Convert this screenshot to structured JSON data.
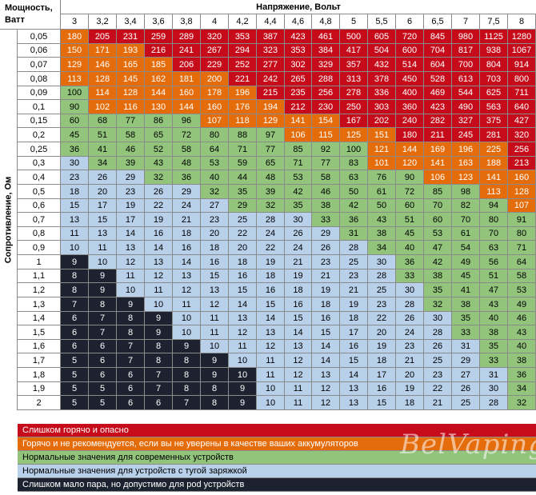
{
  "header": {
    "power_label": "Мощность, Ватт",
    "voltage_title": "Напряжение, Вольт",
    "resistance_title": "Сопротивление, Ом"
  },
  "voltages": [
    "3",
    "3,2",
    "3,4",
    "3,6",
    "3,8",
    "4",
    "4,2",
    "4,4",
    "4,6",
    "4,8",
    "5",
    "5,5",
    "6",
    "6,5",
    "7",
    "7,5",
    "8"
  ],
  "rows": [
    {
      "r": "0,05",
      "v": [
        180,
        205,
        231,
        259,
        289,
        320,
        353,
        387,
        423,
        461,
        500,
        605,
        720,
        845,
        980,
        1125,
        1280
      ],
      "z": [
        "o",
        "r",
        "r",
        "r",
        "r",
        "r",
        "r",
        "r",
        "r",
        "r",
        "r",
        "r",
        "r",
        "r",
        "r",
        "r",
        "r"
      ]
    },
    {
      "r": "0,06",
      "v": [
        150,
        171,
        193,
        216,
        241,
        267,
        294,
        323,
        353,
        384,
        417,
        504,
        600,
        704,
        817,
        938,
        1067
      ],
      "z": [
        "o",
        "o",
        "o",
        "r",
        "r",
        "r",
        "r",
        "r",
        "r",
        "r",
        "r",
        "r",
        "r",
        "r",
        "r",
        "r",
        "r"
      ]
    },
    {
      "r": "0,07",
      "v": [
        129,
        146,
        165,
        185,
        206,
        229,
        252,
        277,
        302,
        329,
        357,
        432,
        514,
        604,
        700,
        804,
        914
      ],
      "z": [
        "o",
        "o",
        "o",
        "o",
        "r",
        "r",
        "r",
        "r",
        "r",
        "r",
        "r",
        "r",
        "r",
        "r",
        "r",
        "r",
        "r"
      ]
    },
    {
      "r": "0,08",
      "v": [
        113,
        128,
        145,
        162,
        181,
        200,
        221,
        242,
        265,
        288,
        313,
        378,
        450,
        528,
        613,
        703,
        800
      ],
      "z": [
        "o",
        "o",
        "o",
        "o",
        "o",
        "o",
        "r",
        "r",
        "r",
        "r",
        "r",
        "r",
        "r",
        "r",
        "r",
        "r",
        "r"
      ]
    },
    {
      "r": "0,09",
      "v": [
        100,
        114,
        128,
        144,
        160,
        178,
        196,
        215,
        235,
        256,
        278,
        336,
        400,
        469,
        544,
        625,
        711
      ],
      "z": [
        "g",
        "o",
        "o",
        "o",
        "o",
        "o",
        "o",
        "r",
        "r",
        "r",
        "r",
        "r",
        "r",
        "r",
        "r",
        "r",
        "r"
      ]
    },
    {
      "r": "0,1",
      "v": [
        90,
        102,
        116,
        130,
        144,
        160,
        176,
        194,
        212,
        230,
        250,
        303,
        360,
        423,
        490,
        563,
        640
      ],
      "z": [
        "g",
        "o",
        "o",
        "o",
        "o",
        "o",
        "o",
        "o",
        "r",
        "r",
        "r",
        "r",
        "r",
        "r",
        "r",
        "r",
        "r"
      ]
    },
    {
      "r": "0,15",
      "v": [
        60,
        68,
        77,
        86,
        96,
        107,
        118,
        129,
        141,
        154,
        167,
        202,
        240,
        282,
        327,
        375,
        427
      ],
      "z": [
        "g",
        "g",
        "g",
        "g",
        "g",
        "o",
        "o",
        "o",
        "o",
        "o",
        "r",
        "r",
        "r",
        "r",
        "r",
        "r",
        "r"
      ]
    },
    {
      "r": "0,2",
      "v": [
        45,
        51,
        58,
        65,
        72,
        80,
        88,
        97,
        106,
        115,
        125,
        151,
        180,
        211,
        245,
        281,
        320
      ],
      "z": [
        "g",
        "g",
        "g",
        "g",
        "g",
        "g",
        "g",
        "g",
        "o",
        "o",
        "o",
        "o",
        "r",
        "r",
        "r",
        "r",
        "r"
      ]
    },
    {
      "r": "0,25",
      "v": [
        36,
        41,
        46,
        52,
        58,
        64,
        71,
        77,
        85,
        92,
        100,
        121,
        144,
        169,
        196,
        225,
        256
      ],
      "z": [
        "g",
        "g",
        "g",
        "g",
        "g",
        "g",
        "g",
        "g",
        "g",
        "g",
        "g",
        "o",
        "o",
        "o",
        "o",
        "o",
        "r"
      ]
    },
    {
      "r": "0,3",
      "v": [
        30,
        34,
        39,
        43,
        48,
        53,
        59,
        65,
        71,
        77,
        83,
        101,
        120,
        141,
        163,
        188,
        213
      ],
      "z": [
        "b",
        "g",
        "g",
        "g",
        "g",
        "g",
        "g",
        "g",
        "g",
        "g",
        "g",
        "o",
        "o",
        "o",
        "o",
        "o",
        "r"
      ]
    },
    {
      "r": "0,4",
      "v": [
        23,
        26,
        29,
        32,
        36,
        40,
        44,
        48,
        53,
        58,
        63,
        76,
        90,
        106,
        123,
        141,
        160
      ],
      "z": [
        "b",
        "b",
        "b",
        "g",
        "g",
        "g",
        "g",
        "g",
        "g",
        "g",
        "g",
        "g",
        "g",
        "o",
        "o",
        "o",
        "o"
      ]
    },
    {
      "r": "0,5",
      "v": [
        18,
        20,
        23,
        26,
        29,
        32,
        35,
        39,
        42,
        46,
        50,
        61,
        72,
        85,
        98,
        113,
        128
      ],
      "z": [
        "b",
        "b",
        "b",
        "b",
        "b",
        "g",
        "g",
        "g",
        "g",
        "g",
        "g",
        "g",
        "g",
        "g",
        "g",
        "o",
        "o"
      ]
    },
    {
      "r": "0,6",
      "v": [
        15,
        17,
        19,
        22,
        24,
        27,
        29,
        32,
        35,
        38,
        42,
        50,
        60,
        70,
        82,
        94,
        107
      ],
      "z": [
        "b",
        "b",
        "b",
        "b",
        "b",
        "b",
        "g",
        "g",
        "g",
        "g",
        "g",
        "g",
        "g",
        "g",
        "g",
        "g",
        "o"
      ]
    },
    {
      "r": "0,7",
      "v": [
        13,
        15,
        17,
        19,
        21,
        23,
        25,
        28,
        30,
        33,
        36,
        43,
        51,
        60,
        70,
        80,
        91
      ],
      "z": [
        "b",
        "b",
        "b",
        "b",
        "b",
        "b",
        "b",
        "b",
        "b",
        "g",
        "g",
        "g",
        "g",
        "g",
        "g",
        "g",
        "g"
      ]
    },
    {
      "r": "0,8",
      "v": [
        11,
        13,
        14,
        16,
        18,
        20,
        22,
        24,
        26,
        29,
        31,
        38,
        45,
        53,
        61,
        70,
        80
      ],
      "z": [
        "b",
        "b",
        "b",
        "b",
        "b",
        "b",
        "b",
        "b",
        "b",
        "b",
        "g",
        "g",
        "g",
        "g",
        "g",
        "g",
        "g"
      ]
    },
    {
      "r": "0,9",
      "v": [
        10,
        11,
        13,
        14,
        16,
        18,
        20,
        22,
        24,
        26,
        28,
        34,
        40,
        47,
        54,
        63,
        71
      ],
      "z": [
        "b",
        "b",
        "b",
        "b",
        "b",
        "b",
        "b",
        "b",
        "b",
        "b",
        "b",
        "g",
        "g",
        "g",
        "g",
        "g",
        "g"
      ]
    },
    {
      "r": "1",
      "v": [
        9,
        10,
        12,
        13,
        14,
        16,
        18,
        19,
        21,
        23,
        25,
        30,
        36,
        42,
        49,
        56,
        64
      ],
      "z": [
        "d",
        "b",
        "b",
        "b",
        "b",
        "b",
        "b",
        "b",
        "b",
        "b",
        "b",
        "b",
        "g",
        "g",
        "g",
        "g",
        "g"
      ]
    },
    {
      "r": "1,1",
      "v": [
        8,
        9,
        11,
        12,
        13,
        15,
        16,
        18,
        19,
        21,
        23,
        28,
        33,
        38,
        45,
        51,
        58
      ],
      "z": [
        "d",
        "d",
        "b",
        "b",
        "b",
        "b",
        "b",
        "b",
        "b",
        "b",
        "b",
        "b",
        "g",
        "g",
        "g",
        "g",
        "g"
      ]
    },
    {
      "r": "1,2",
      "v": [
        8,
        9,
        10,
        11,
        12,
        13,
        15,
        16,
        18,
        19,
        21,
        25,
        30,
        35,
        41,
        47,
        53
      ],
      "z": [
        "d",
        "d",
        "b",
        "b",
        "b",
        "b",
        "b",
        "b",
        "b",
        "b",
        "b",
        "b",
        "b",
        "g",
        "g",
        "g",
        "g"
      ]
    },
    {
      "r": "1,3",
      "v": [
        7,
        8,
        9,
        10,
        11,
        12,
        14,
        15,
        16,
        18,
        19,
        23,
        28,
        32,
        38,
        43,
        49
      ],
      "z": [
        "d",
        "d",
        "d",
        "b",
        "b",
        "b",
        "b",
        "b",
        "b",
        "b",
        "b",
        "b",
        "b",
        "g",
        "g",
        "g",
        "g"
      ]
    },
    {
      "r": "1,4",
      "v": [
        6,
        7,
        8,
        9,
        10,
        11,
        13,
        14,
        15,
        16,
        18,
        22,
        26,
        30,
        35,
        40,
        46
      ],
      "z": [
        "d",
        "d",
        "d",
        "d",
        "b",
        "b",
        "b",
        "b",
        "b",
        "b",
        "b",
        "b",
        "b",
        "b",
        "g",
        "g",
        "g"
      ]
    },
    {
      "r": "1,5",
      "v": [
        6,
        7,
        8,
        9,
        10,
        11,
        12,
        13,
        14,
        15,
        17,
        20,
        24,
        28,
        33,
        38,
        43
      ],
      "z": [
        "d",
        "d",
        "d",
        "d",
        "b",
        "b",
        "b",
        "b",
        "b",
        "b",
        "b",
        "b",
        "b",
        "b",
        "g",
        "g",
        "g"
      ]
    },
    {
      "r": "1,6",
      "v": [
        6,
        6,
        7,
        8,
        9,
        10,
        11,
        12,
        13,
        14,
        16,
        19,
        23,
        26,
        31,
        35,
        40
      ],
      "z": [
        "d",
        "d",
        "d",
        "d",
        "d",
        "b",
        "b",
        "b",
        "b",
        "b",
        "b",
        "b",
        "b",
        "b",
        "b",
        "g",
        "g"
      ]
    },
    {
      "r": "1,7",
      "v": [
        5,
        6,
        7,
        8,
        8,
        9,
        10,
        11,
        12,
        14,
        15,
        18,
        21,
        25,
        29,
        33,
        38
      ],
      "z": [
        "d",
        "d",
        "d",
        "d",
        "d",
        "d",
        "b",
        "b",
        "b",
        "b",
        "b",
        "b",
        "b",
        "b",
        "b",
        "g",
        "g"
      ]
    },
    {
      "r": "1,8",
      "v": [
        5,
        6,
        6,
        7,
        8,
        9,
        10,
        11,
        12,
        13,
        14,
        17,
        20,
        23,
        27,
        31,
        36
      ],
      "z": [
        "d",
        "d",
        "d",
        "d",
        "d",
        "d",
        "d",
        "b",
        "b",
        "b",
        "b",
        "b",
        "b",
        "b",
        "b",
        "b",
        "g"
      ]
    },
    {
      "r": "1,9",
      "v": [
        5,
        5,
        6,
        7,
        8,
        8,
        9,
        10,
        11,
        12,
        13,
        16,
        19,
        22,
        26,
        30,
        34
      ],
      "z": [
        "d",
        "d",
        "d",
        "d",
        "d",
        "d",
        "d",
        "b",
        "b",
        "b",
        "b",
        "b",
        "b",
        "b",
        "b",
        "b",
        "g"
      ]
    },
    {
      "r": "2",
      "v": [
        5,
        5,
        6,
        6,
        7,
        8,
        9,
        10,
        11,
        12,
        13,
        15,
        18,
        21,
        25,
        28,
        32
      ],
      "z": [
        "d",
        "d",
        "d",
        "d",
        "d",
        "d",
        "d",
        "b",
        "b",
        "b",
        "b",
        "b",
        "b",
        "b",
        "b",
        "b",
        "g"
      ]
    }
  ],
  "colors": {
    "r": "#c60c1b",
    "o": "#e46c0a",
    "g": "#92c47c",
    "b": "#b8d0ea",
    "d": "#1c2230"
  },
  "legend": [
    {
      "zone": "r",
      "text": "Слишком горячо и опасно"
    },
    {
      "zone": "o",
      "text": "Горячо и не рекомендуется, если вы не уверены в качестве ваших аккумуляторов"
    },
    {
      "zone": "g",
      "text": "Нормальные значения для современных устройств"
    },
    {
      "zone": "b",
      "text": "Нормальные значения для устройств с тугой заряжкой"
    },
    {
      "zone": "d",
      "text": "Слишком мало пара, но допустимо для pod устройств"
    }
  ],
  "watermark": "BelVaping"
}
